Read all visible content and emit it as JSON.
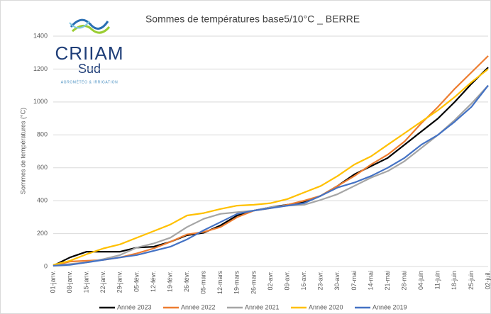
{
  "logo": {
    "name": "CRIIAM",
    "sub": "Sud",
    "tagline": "AGROMÉTÉO & IRRIGATION"
  },
  "chart_data": {
    "type": "line",
    "title": "Sommes de températures base5/10°C _ BERRE",
    "y_label": "Sommes de températures (°C)",
    "categories": [
      "01-janv.",
      "08-janv.",
      "15-janv.",
      "22-janv.",
      "29-janv.",
      "05-févr.",
      "12-févr.",
      "19-févr.",
      "26-févr.",
      "05-mars",
      "12-mars",
      "19-mars",
      "26-mars",
      "02-avr.",
      "09-avr.",
      "16-avr.",
      "23-avr.",
      "30-avr.",
      "07-mai",
      "14-mai",
      "21-mai",
      "28-mai",
      "04-juin",
      "11-juin",
      "18-juin",
      "25-juin",
      "02-juil."
    ],
    "series": [
      {
        "name": "Année 2023",
        "color": "#000000",
        "values": [
          5,
          55,
          90,
          90,
          90,
          115,
          120,
          150,
          190,
          205,
          250,
          310,
          340,
          360,
          375,
          390,
          430,
          490,
          560,
          610,
          660,
          740,
          820,
          900,
          1000,
          1110,
          1210
        ]
      },
      {
        "name": "Année 2022",
        "color": "#ed7d31",
        "values": [
          5,
          30,
          35,
          40,
          55,
          80,
          110,
          150,
          195,
          210,
          240,
          300,
          340,
          355,
          375,
          400,
          430,
          490,
          550,
          620,
          680,
          760,
          870,
          970,
          1080,
          1180,
          1280
        ]
      },
      {
        "name": "Année 2021",
        "color": "#a5a5a5",
        "values": [
          5,
          15,
          25,
          45,
          70,
          115,
          140,
          175,
          240,
          290,
          320,
          330,
          340,
          360,
          370,
          375,
          405,
          440,
          490,
          540,
          580,
          640,
          720,
          800,
          890,
          990,
          1100
        ]
      },
      {
        "name": "Année 2020",
        "color": "#ffc000",
        "values": [
          10,
          35,
          75,
          110,
          135,
          175,
          215,
          255,
          310,
          325,
          350,
          370,
          375,
          385,
          410,
          450,
          490,
          550,
          620,
          670,
          740,
          810,
          880,
          950,
          1030,
          1120,
          1200
        ]
      },
      {
        "name": "Année 2019",
        "color": "#4472c4",
        "values": [
          5,
          10,
          25,
          40,
          55,
          70,
          95,
          120,
          165,
          220,
          270,
          320,
          340,
          355,
          370,
          385,
          430,
          480,
          510,
          550,
          600,
          660,
          740,
          800,
          880,
          970,
          1100
        ]
      }
    ],
    "ylim": [
      0,
      1400
    ],
    "yticks": [
      0,
      200,
      400,
      600,
      800,
      1000,
      1200,
      1400
    ],
    "grid": true,
    "legend": "bottom"
  }
}
